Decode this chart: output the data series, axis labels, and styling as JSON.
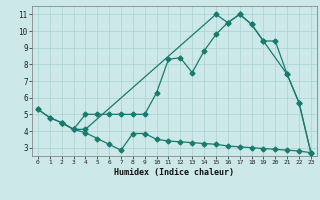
{
  "line1_x": [
    0,
    1,
    2,
    3,
    4,
    5,
    6,
    7,
    8,
    9,
    10,
    11,
    12,
    13,
    14,
    15,
    16,
    17,
    18,
    19,
    20,
    21,
    22,
    23
  ],
  "line1_y": [
    5.3,
    4.8,
    4.5,
    4.1,
    5.0,
    5.0,
    5.0,
    5.0,
    5.0,
    5.0,
    6.3,
    8.3,
    8.4,
    7.5,
    8.8,
    9.8,
    10.5,
    11.0,
    10.4,
    9.4,
    9.4,
    7.4,
    5.7,
    2.7
  ],
  "line2_x": [
    0,
    1,
    2,
    3,
    4,
    15,
    16,
    17,
    18,
    19,
    21,
    22,
    23
  ],
  "line2_y": [
    5.3,
    4.8,
    4.5,
    4.1,
    4.1,
    11.0,
    10.5,
    11.0,
    10.4,
    9.4,
    7.4,
    5.7,
    2.7
  ],
  "line3_x": [
    2,
    3,
    4,
    5,
    6,
    7,
    8,
    9,
    10,
    11,
    12,
    13,
    14,
    15,
    16,
    17,
    18,
    19,
    20,
    21,
    22,
    23
  ],
  "line3_y": [
    4.5,
    4.1,
    3.9,
    3.55,
    3.2,
    2.85,
    3.85,
    3.85,
    3.5,
    3.4,
    3.35,
    3.3,
    3.25,
    3.2,
    3.1,
    3.05,
    3.0,
    2.95,
    2.9,
    2.85,
    2.8,
    2.7
  ],
  "line_color": "#1a7a6e",
  "bg_color": "#cce8e8",
  "grid_color_major": "#aad0d0",
  "grid_color_minor": "#bbdddd",
  "xlabel": "Humidex (Indice chaleur)",
  "ylim": [
    2.5,
    11.5
  ],
  "xlim": [
    -0.5,
    23.5
  ],
  "yticks": [
    3,
    4,
    5,
    6,
    7,
    8,
    9,
    10,
    11
  ],
  "xticks": [
    0,
    1,
    2,
    3,
    4,
    5,
    6,
    7,
    8,
    9,
    10,
    11,
    12,
    13,
    14,
    15,
    16,
    17,
    18,
    19,
    20,
    21,
    22,
    23
  ],
  "marker": "D",
  "markersize": 2.5,
  "linewidth": 0.9
}
